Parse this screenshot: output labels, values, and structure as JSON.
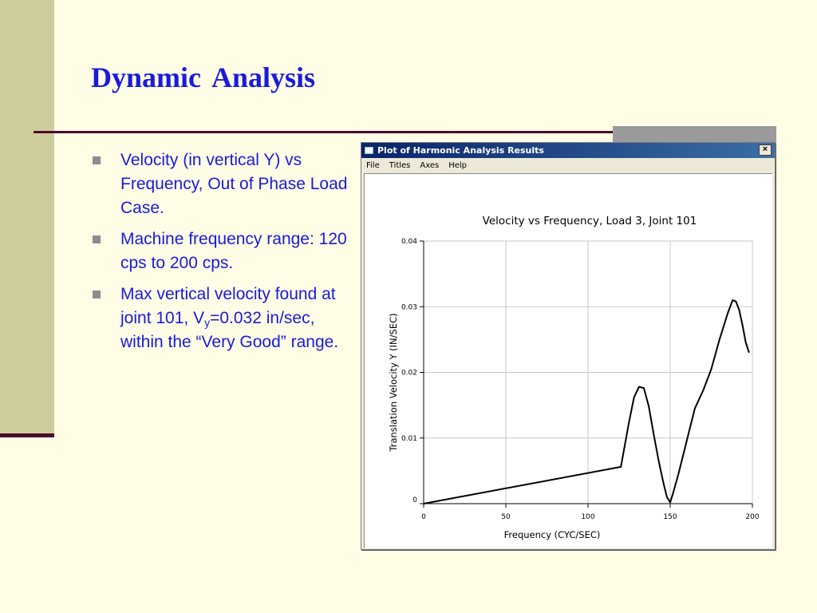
{
  "slide": {
    "title": "Dynamic  Analysis",
    "bullets": [
      {
        "text": "Velocity (in vertical Y) vs Frequency, Out of Phase Load Case."
      },
      {
        "text": "Machine frequency range: 120 cps to 200 cps."
      },
      {
        "pre": "Max vertical velocity found at joint 101, V",
        "sub": "y",
        "post": "=0.032 in/sec, within the “Very Good” range."
      }
    ]
  },
  "window": {
    "title": "Plot of Harmonic Analysis Results",
    "close_label": "×",
    "menu": [
      "File",
      "Titles",
      "Axes",
      "Help"
    ]
  },
  "chart_data": {
    "type": "line",
    "title": "Velocity vs Frequency, Load 3, Joint 101",
    "xlabel": "Frequency (CYC/SEC)",
    "ylabel": "Translation Velocity Y (IN/SEC)",
    "xlim": [
      0,
      200
    ],
    "ylim": [
      0,
      0.04
    ],
    "x_ticks": [
      "0",
      "50",
      "100",
      "150",
      "200"
    ],
    "y_ticks": [
      "0",
      "0.01",
      "0.02",
      "0.03",
      "0.04"
    ],
    "grid": true,
    "series": [
      {
        "color": "#000000",
        "x": [
          0,
          120,
          125,
          128,
          131,
          134,
          137,
          140,
          143,
          146,
          148,
          150,
          152,
          155,
          158,
          162,
          165,
          170,
          175,
          180,
          185,
          188,
          190,
          192,
          194,
          196,
          198
        ],
        "y": [
          0.0,
          0.0056,
          0.0125,
          0.0162,
          0.0178,
          0.0176,
          0.0148,
          0.0105,
          0.0065,
          0.003,
          0.001,
          0.0002,
          0.0018,
          0.0045,
          0.0075,
          0.0115,
          0.0145,
          0.0172,
          0.0205,
          0.025,
          0.029,
          0.031,
          0.0308,
          0.0295,
          0.0272,
          0.0245,
          0.023
        ]
      }
    ]
  }
}
